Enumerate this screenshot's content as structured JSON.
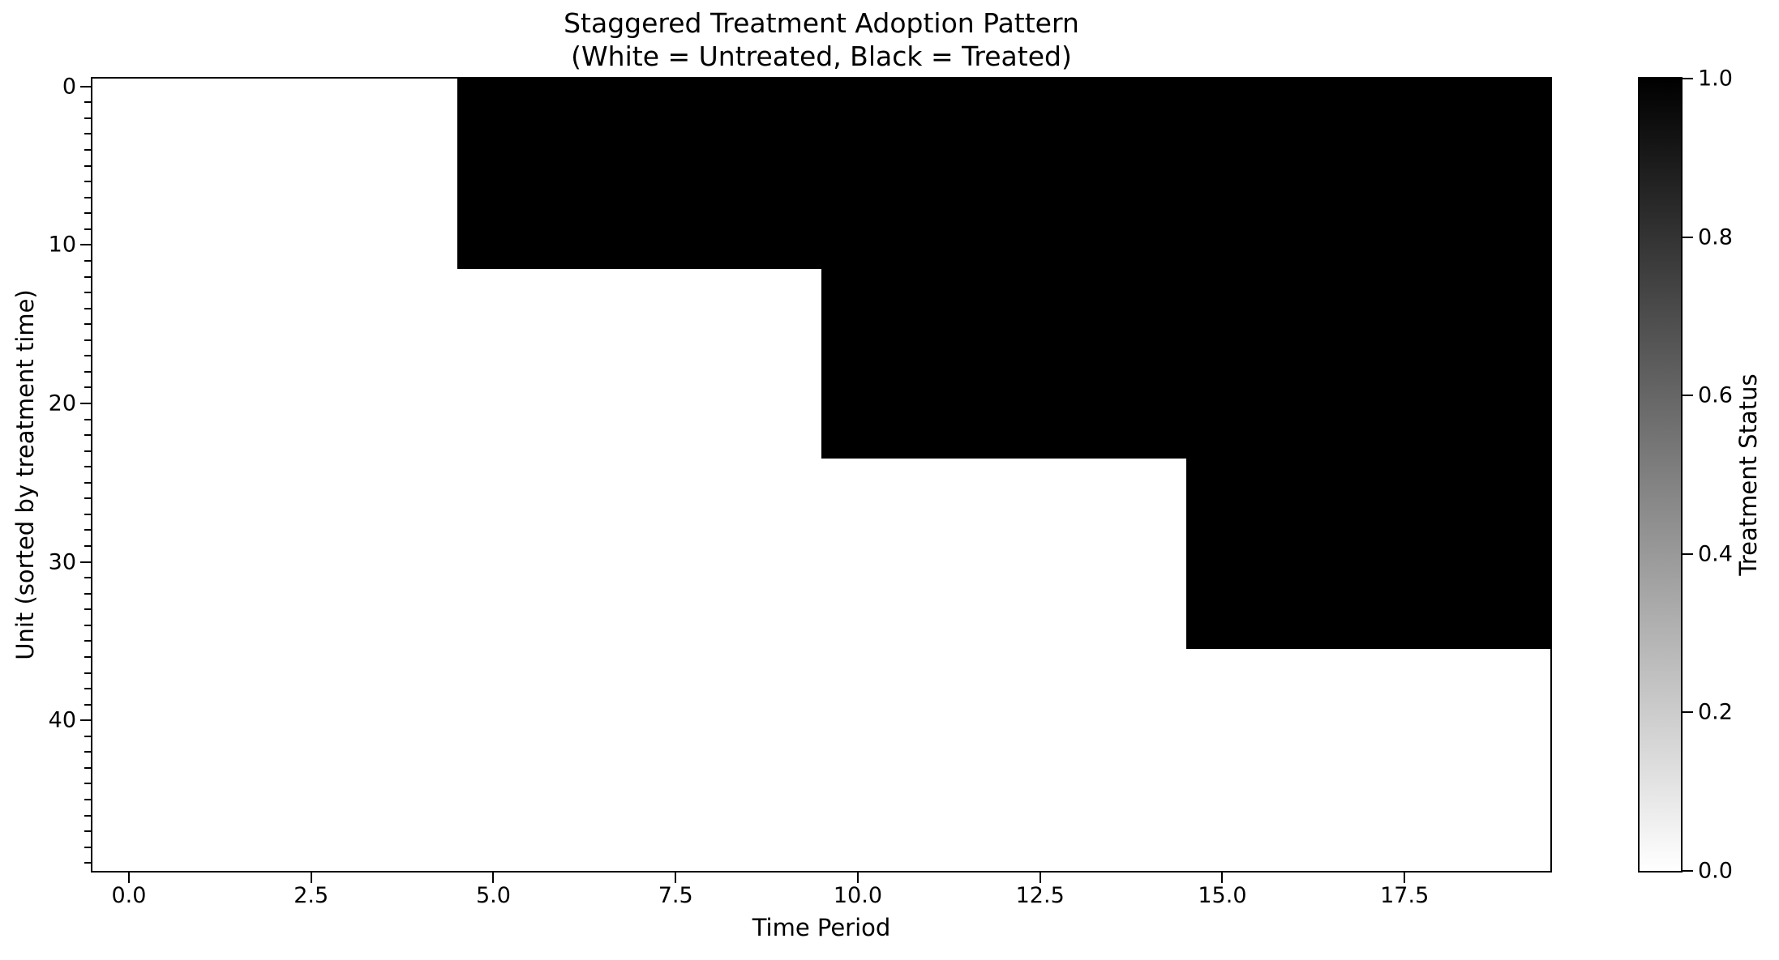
{
  "chart_data": {
    "type": "heatmap",
    "title": "Staggered Treatment Adoption Pattern",
    "subtitle": "(White = Untreated, Black = Treated)",
    "xlabel": "Time Period",
    "ylabel": "Unit (sorted by treatment time)",
    "colorbar_label": "Treatment Status",
    "colors": {
      "treated": "#000000",
      "untreated": "#ffffff",
      "text": "#000000"
    },
    "n_units": 50,
    "n_periods": 20,
    "x_extent": [
      -0.5,
      19.5
    ],
    "y_extent": [
      -0.5,
      49.5
    ],
    "x_tick_values": [
      0,
      2.5,
      5,
      7.5,
      10,
      12.5,
      15,
      17.5
    ],
    "x_tick_labels": [
      "0.0",
      "2.5",
      "5.0",
      "7.5",
      "10.0",
      "12.5",
      "15.0",
      "17.5"
    ],
    "y_tick_values": [
      0,
      10,
      20,
      30,
      40
    ],
    "y_tick_labels": [
      "0",
      "10",
      "20",
      "30",
      "40"
    ],
    "y_minor_tick_step": 1,
    "colorbar_tick_values": [
      1.0,
      0.8,
      0.6,
      0.4,
      0.2,
      0.0
    ],
    "colorbar_tick_labels": [
      "1.0",
      "0.8",
      "0.6",
      "0.4",
      "0.2",
      "0.0"
    ],
    "colorbar_range": [
      0.0,
      1.0
    ],
    "legend_note": "cell value 1 = treated (black), 0 = untreated (white)",
    "cohorts": [
      {
        "unit_start": 0,
        "unit_end": 11,
        "treatment_start_period": 5
      },
      {
        "unit_start": 12,
        "unit_end": 23,
        "treatment_start_period": 10
      },
      {
        "unit_start": 24,
        "unit_end": 35,
        "treatment_start_period": 15
      },
      {
        "unit_start": 36,
        "unit_end": 49,
        "treatment_start_period": null
      }
    ]
  }
}
